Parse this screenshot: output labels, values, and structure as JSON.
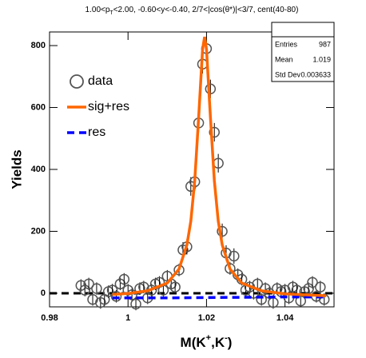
{
  "chart_data": {
    "type": "scatter",
    "title": [
      "1.00<p",
      "T",
      "<2.00, -0.60<y<-0.40, 2/7<|cos(θ*)|<3/7, cent(40-80)"
    ],
    "x_label": [
      "M(K",
      "+",
      ",K",
      "-",
      ")"
    ],
    "y_label": "Yields",
    "xlim": [
      0.98,
      1.0525
    ],
    "xticks": [
      0.98,
      {
        "value": 1.0,
        "label": "1"
      },
      1.02,
      1.04
    ],
    "ylim": [
      -44,
      844
    ],
    "yticks": [
      0,
      200,
      400,
      600,
      800
    ],
    "hline": 0,
    "series": [
      {
        "name": "data",
        "color": "#555555",
        "x": [
          0.988,
          0.989,
          0.99,
          0.991,
          0.992,
          0.993,
          0.994,
          0.995,
          0.996,
          0.997,
          0.998,
          0.999,
          1.0,
          1.001,
          1.002,
          1.003,
          1.004,
          1.005,
          1.006,
          1.007,
          1.008,
          1.009,
          1.01,
          1.011,
          1.012,
          1.013,
          1.014,
          1.015,
          1.016,
          1.017,
          1.018,
          1.019,
          1.02,
          1.021,
          1.022,
          1.023,
          1.024,
          1.025,
          1.026,
          1.027,
          1.028,
          1.029,
          1.03,
          1.031,
          1.032,
          1.033,
          1.034,
          1.035,
          1.036,
          1.037,
          1.038,
          1.039,
          1.04,
          1.041,
          1.042,
          1.043,
          1.044,
          1.045,
          1.046,
          1.047,
          1.048,
          1.049,
          1.05
        ],
        "values": [
          25,
          10,
          30,
          -20,
          15,
          -30,
          -20,
          5,
          10,
          -10,
          30,
          45,
          10,
          -5,
          -35,
          15,
          20,
          -15,
          10,
          30,
          35,
          10,
          55,
          30,
          20,
          75,
          140,
          150,
          345,
          360,
          550,
          740,
          790,
          660,
          520,
          420,
          200,
          130,
          80,
          120,
          60,
          45,
          10,
          20,
          0,
          30,
          -20,
          15,
          0,
          -30,
          15,
          5,
          10,
          -15,
          20,
          10,
          -25,
          5,
          15,
          35,
          -10,
          20,
          -20
        ],
        "errors": [
          20,
          20,
          20,
          20,
          20,
          20,
          20,
          20,
          20,
          20,
          20,
          20,
          20,
          20,
          20,
          20,
          20,
          20,
          20,
          20,
          20,
          20,
          20,
          20,
          20,
          20,
          25,
          25,
          30,
          30,
          30,
          30,
          30,
          30,
          30,
          30,
          25,
          25,
          20,
          25,
          20,
          20,
          20,
          20,
          20,
          20,
          20,
          20,
          20,
          20,
          20,
          20,
          20,
          20,
          20,
          20,
          20,
          20,
          20,
          20,
          20,
          20,
          20
        ]
      },
      {
        "name": "sig+res",
        "color": "#ff6600",
        "x": [
          0.996,
          1.0,
          1.005,
          1.01,
          1.013,
          1.015,
          1.016,
          1.017,
          1.018,
          1.019,
          1.0195,
          1.02,
          1.021,
          1.022,
          1.023,
          1.024,
          1.026,
          1.029,
          1.034,
          1.04,
          1.045,
          1.0505
        ],
        "values": [
          -4,
          -1,
          8,
          33,
          78,
          156,
          233,
          364,
          569,
          788,
          828,
          788,
          569,
          364,
          233,
          156,
          78,
          33,
          8,
          -2,
          -5,
          -8
        ]
      },
      {
        "name": "res",
        "color": "#0000ff",
        "x": [
          0.996,
          1.01,
          1.02,
          1.03,
          1.04,
          1.0505
        ],
        "values": [
          -15,
          -15,
          -14,
          -13,
          -12,
          -12
        ]
      }
    ],
    "stats": [
      [
        "Entries",
        987
      ],
      [
        "Mean",
        1.019
      ],
      [
        "Std Dev",
        0.003633
      ]
    ]
  }
}
